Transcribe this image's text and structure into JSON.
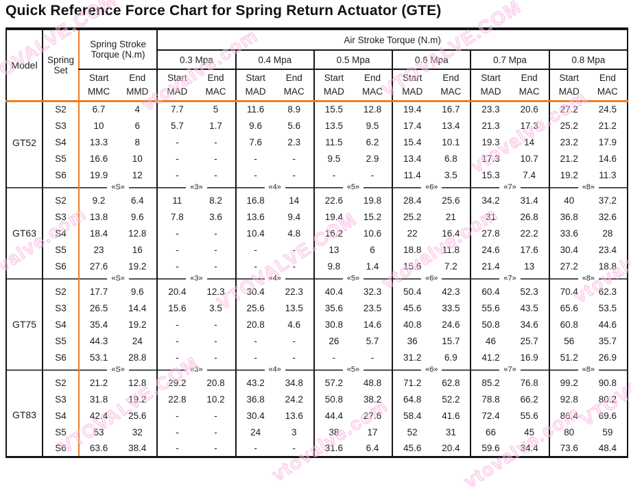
{
  "title": "Quick Reference Force Chart for Spring Return Actuator (GTE)",
  "colors": {
    "accent_orange": "#ed7d22",
    "border_black": "#151515",
    "watermark_pink": "#f49ed6"
  },
  "watermark": {
    "text_lower": "vtovalve.com",
    "text_upper": "VTOVALVE.COM"
  },
  "header": {
    "model": "Model",
    "spring_set": "Spring Set",
    "spring_stroke_torque": "Spring Stroke Torque (N.m)",
    "air_stroke_torque": "Air Stroke Torque (N.m)",
    "pressures": [
      "0.3 Mpa",
      "0.4 Mpa",
      "0.5 Mpa",
      "0.6 Mpa",
      "0.7 Mpa",
      "0.8 Mpa"
    ],
    "spring_sub": [
      {
        "top": "Start",
        "bottom": "MMC"
      },
      {
        "top": "End",
        "bottom": "MMD"
      }
    ],
    "air_sub": [
      {
        "top": "Start",
        "bottom": "MAD"
      },
      {
        "top": "End",
        "bottom": "MAC"
      }
    ]
  },
  "separator_markers": [
    "«S»",
    "«3»",
    "«4»",
    "«5»",
    "«6»",
    "«7»",
    "«8»"
  ],
  "groups": [
    {
      "model": "GT52",
      "rows": [
        {
          "set": "S2",
          "values": [
            "6.7",
            "4",
            "7.7",
            "5",
            "11.6",
            "8.9",
            "15.5",
            "12.8",
            "19.4",
            "16.7",
            "23.3",
            "20.6",
            "27.2",
            "24.5"
          ]
        },
        {
          "set": "S3",
          "values": [
            "10",
            "6",
            "5.7",
            "1.7",
            "9.6",
            "5.6",
            "13.5",
            "9.5",
            "17.4",
            "13.4",
            "21.3",
            "17.3",
            "25.2",
            "21.2"
          ]
        },
        {
          "set": "S4",
          "values": [
            "13.3",
            "8",
            "-",
            "-",
            "7.6",
            "2.3",
            "11.5",
            "6.2",
            "15.4",
            "10.1",
            "19.3",
            "14",
            "23.2",
            "17.9"
          ]
        },
        {
          "set": "S5",
          "values": [
            "16.6",
            "10",
            "-",
            "-",
            "-",
            "-",
            "9.5",
            "2.9",
            "13.4",
            "6.8",
            "17.3",
            "10.7",
            "21.2",
            "14.6"
          ]
        },
        {
          "set": "S6",
          "values": [
            "19.9",
            "12",
            "-",
            "-",
            "-",
            "-",
            "-",
            "-",
            "11.4",
            "3.5",
            "15.3",
            "7.4",
            "19.2",
            "11.3"
          ]
        }
      ]
    },
    {
      "model": "GT63",
      "rows": [
        {
          "set": "S2",
          "values": [
            "9.2",
            "6.4",
            "11",
            "8.2",
            "16.8",
            "14",
            "22.6",
            "19.8",
            "28.4",
            "25.6",
            "34.2",
            "31.4",
            "40",
            "37.2"
          ]
        },
        {
          "set": "S3",
          "values": [
            "13.8",
            "9.6",
            "7.8",
            "3.6",
            "13.6",
            "9.4",
            "19.4",
            "15.2",
            "25.2",
            "21",
            "31",
            "26.8",
            "36.8",
            "32.6"
          ]
        },
        {
          "set": "S4",
          "values": [
            "18.4",
            "12.8",
            "-",
            "-",
            "10.4",
            "4.8",
            "16.2",
            "10.6",
            "22",
            "16.4",
            "27.8",
            "22.2",
            "33.6",
            "28"
          ]
        },
        {
          "set": "S5",
          "values": [
            "23",
            "16",
            "-",
            "-",
            "-",
            "-",
            "13",
            "6",
            "18.8",
            "11.8",
            "24.6",
            "17.6",
            "30.4",
            "23.4"
          ]
        },
        {
          "set": "S6",
          "values": [
            "27.6",
            "19.2",
            "-",
            "-",
            "-",
            "-",
            "9.8",
            "1.4",
            "15.6",
            "7.2",
            "21.4",
            "13",
            "27.2",
            "18.8"
          ]
        }
      ]
    },
    {
      "model": "GT75",
      "rows": [
        {
          "set": "S2",
          "values": [
            "17.7",
            "9.6",
            "20.4",
            "12.3",
            "30.4",
            "22.3",
            "40.4",
            "32.3",
            "50.4",
            "42.3",
            "60.4",
            "52.3",
            "70.4",
            "62.3"
          ]
        },
        {
          "set": "S3",
          "values": [
            "26.5",
            "14.4",
            "15.6",
            "3.5",
            "25.6",
            "13.5",
            "35.6",
            "23.5",
            "45.6",
            "33.5",
            "55.6",
            "43.5",
            "65.6",
            "53.5"
          ]
        },
        {
          "set": "S4",
          "values": [
            "35.4",
            "19.2",
            "-",
            "-",
            "20.8",
            "4.6",
            "30.8",
            "14.6",
            "40.8",
            "24.6",
            "50.8",
            "34.6",
            "60.8",
            "44.6"
          ]
        },
        {
          "set": "S5",
          "values": [
            "44.3",
            "24",
            "-",
            "-",
            "-",
            "-",
            "26",
            "5.7",
            "36",
            "15.7",
            "46",
            "25.7",
            "56",
            "35.7"
          ]
        },
        {
          "set": "S6",
          "values": [
            "53.1",
            "28.8",
            "-",
            "-",
            "-",
            "-",
            "-",
            "-",
            "31.2",
            "6.9",
            "41.2",
            "16.9",
            "51.2",
            "26.9"
          ]
        }
      ]
    },
    {
      "model": "GT83",
      "rows": [
        {
          "set": "S2",
          "values": [
            "21.2",
            "12.8",
            "29.2",
            "20.8",
            "43.2",
            "34.8",
            "57.2",
            "48.8",
            "71.2",
            "62.8",
            "85.2",
            "76.8",
            "99.2",
            "90.8"
          ]
        },
        {
          "set": "S3",
          "values": [
            "31.8",
            "19.2",
            "22.8",
            "10.2",
            "36.8",
            "24.2",
            "50.8",
            "38.2",
            "64.8",
            "52.2",
            "78.8",
            "66.2",
            "92.8",
            "80.2"
          ]
        },
        {
          "set": "S4",
          "values": [
            "42.4",
            "25.6",
            "-",
            "-",
            "30.4",
            "13.6",
            "44.4",
            "27.6",
            "58.4",
            "41.6",
            "72.4",
            "55.6",
            "86.4",
            "69.6"
          ]
        },
        {
          "set": "S5",
          "values": [
            "53",
            "32",
            "-",
            "-",
            "24",
            "3",
            "38",
            "17",
            "52",
            "31",
            "66",
            "45",
            "80",
            "59"
          ]
        },
        {
          "set": "S6",
          "values": [
            "63.6",
            "38.4",
            "-",
            "-",
            "-",
            "-",
            "31.6",
            "6.4",
            "45.6",
            "20.4",
            "59.6",
            "34.4",
            "73.6",
            "48.4"
          ]
        }
      ]
    }
  ]
}
